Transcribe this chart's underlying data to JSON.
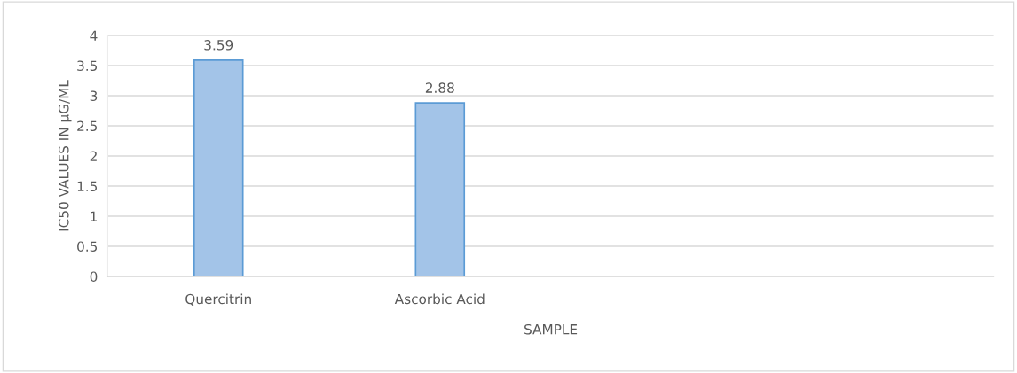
{
  "chart_data": {
    "type": "bar",
    "categories": [
      "Quercitrin",
      "Ascorbic Acid",
      null,
      null
    ],
    "values": [
      3.59,
      2.88,
      null,
      null
    ],
    "color": "#a3c4e8",
    "xlabel": "SAMPLE",
    "ylabel": "IC50 VALUES IN µG/ML",
    "ylim": [
      0,
      4
    ],
    "yticks": [
      0,
      0.5,
      1,
      1.5,
      2,
      2.5,
      3,
      3.5,
      4
    ],
    "grid": "y",
    "data_labels": true
  }
}
